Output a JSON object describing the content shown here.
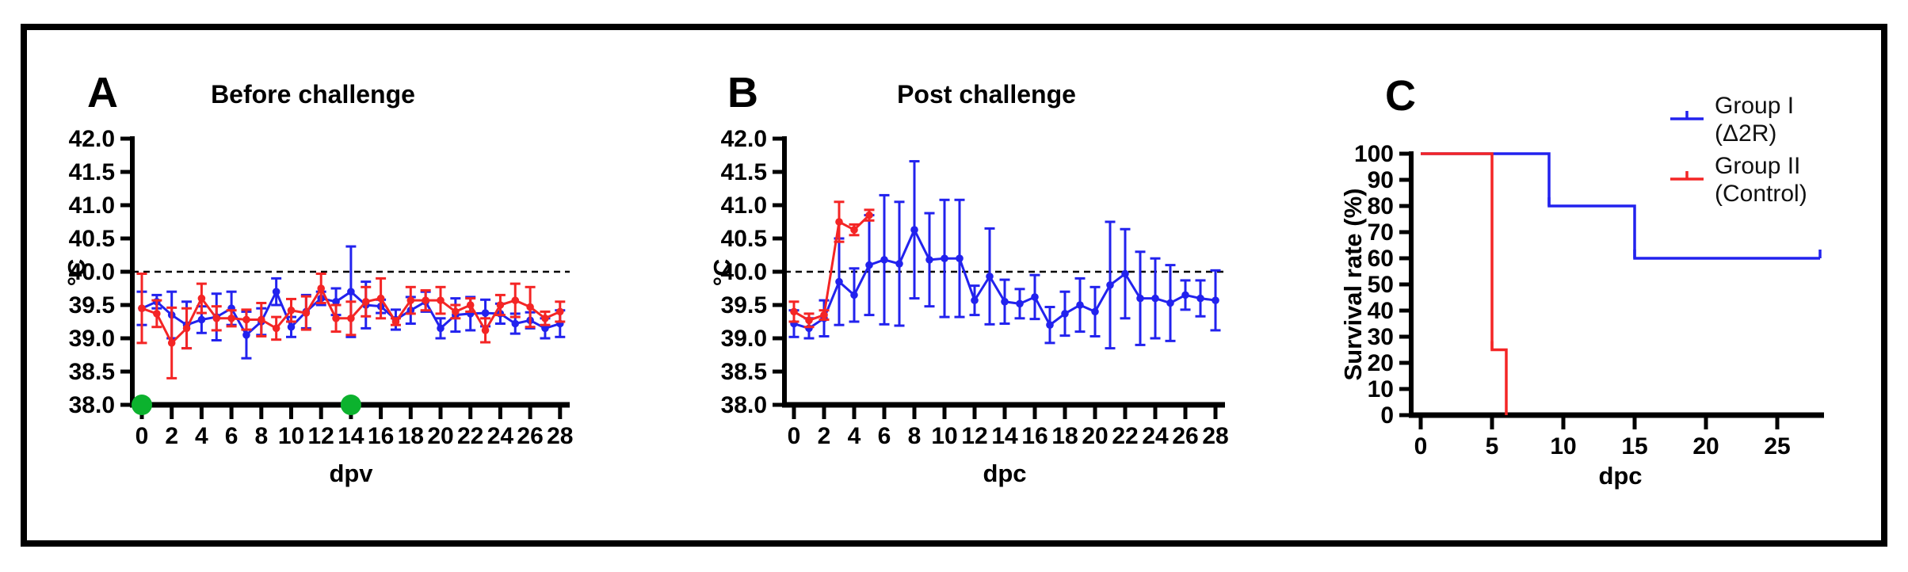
{
  "colors": {
    "group1_blue": "#2222ee",
    "group2_red": "#f42525",
    "event_green": "#0cb22e",
    "axis_black": "#000000"
  },
  "legend": {
    "entries": [
      {
        "line1": "Group I",
        "line2": "(Δ2R)",
        "color": "#2222ee"
      },
      {
        "line1": "Group II",
        "line2": "(Control)",
        "color": "#f42525"
      }
    ]
  },
  "chart_data": [
    {
      "type": "line",
      "letter": "A",
      "title": "Before challenge",
      "xlabel": "dpv",
      "ylabel": "°C",
      "xlim": [
        0,
        28
      ],
      "ylim": [
        38.0,
        42.0
      ],
      "xticks": [
        0,
        2,
        4,
        6,
        8,
        10,
        12,
        14,
        16,
        18,
        20,
        22,
        24,
        26,
        28
      ],
      "ytick_labels": [
        "38.0",
        "38.5",
        "39.0",
        "39.5",
        "40.0",
        "40.5",
        "41.0",
        "41.5",
        "42.0"
      ],
      "ref_line_y": 40.0,
      "vaccination_marker_days": [
        0,
        14
      ],
      "series": [
        {
          "name": "Group I (Δ2R)",
          "color": "#2222ee",
          "x": [
            0,
            1,
            2,
            3,
            4,
            5,
            6,
            7,
            8,
            9,
            10,
            11,
            12,
            13,
            14,
            15,
            16,
            17,
            18,
            19,
            20,
            21,
            22,
            23,
            24,
            25,
            26,
            27,
            28
          ],
          "y": [
            39.45,
            39.55,
            39.35,
            39.2,
            39.28,
            39.32,
            39.45,
            39.05,
            39.25,
            39.7,
            39.17,
            39.4,
            39.6,
            39.55,
            39.7,
            39.5,
            39.48,
            39.28,
            39.42,
            39.55,
            39.15,
            39.35,
            39.37,
            39.38,
            39.37,
            39.22,
            39.27,
            39.15,
            39.22
          ],
          "err": [
            0.25,
            0.1,
            0.35,
            0.35,
            0.2,
            0.35,
            0.25,
            0.35,
            0.2,
            0.2,
            0.15,
            0.25,
            0.1,
            0.2,
            0.68,
            0.35,
            0.1,
            0.15,
            0.2,
            0.15,
            0.15,
            0.25,
            0.25,
            0.2,
            0.15,
            0.15,
            0.12,
            0.15,
            0.2
          ]
        },
        {
          "name": "Group II (Control)",
          "color": "#f42525",
          "x": [
            0,
            1,
            2,
            3,
            4,
            5,
            6,
            7,
            8,
            9,
            10,
            11,
            12,
            13,
            14,
            15,
            16,
            17,
            18,
            19,
            20,
            21,
            22,
            23,
            24,
            25,
            26,
            27,
            28
          ],
          "y": [
            39.45,
            39.37,
            38.93,
            39.15,
            39.6,
            39.3,
            39.3,
            39.28,
            39.28,
            39.15,
            39.42,
            39.38,
            39.75,
            39.3,
            39.3,
            39.55,
            39.6,
            39.25,
            39.57,
            39.57,
            39.57,
            39.4,
            39.5,
            39.12,
            39.5,
            39.57,
            39.47,
            39.3,
            39.4
          ],
          "err": [
            0.52,
            0.2,
            0.53,
            0.3,
            0.22,
            0.18,
            0.12,
            0.15,
            0.25,
            0.17,
            0.17,
            0.25,
            0.22,
            0.2,
            0.25,
            0.22,
            0.3,
            0.05,
            0.2,
            0.15,
            0.2,
            0.1,
            0.1,
            0.18,
            0.15,
            0.25,
            0.3,
            0.1,
            0.15
          ]
        }
      ]
    },
    {
      "type": "line",
      "letter": "B",
      "title": "Post challenge",
      "xlabel": "dpc",
      "ylabel": "°C",
      "xlim": [
        0,
        28
      ],
      "ylim": [
        38.0,
        42.0
      ],
      "xticks": [
        0,
        2,
        4,
        6,
        8,
        10,
        12,
        14,
        16,
        18,
        20,
        22,
        24,
        26,
        28
      ],
      "ytick_labels": [
        "38.0",
        "38.5",
        "39.0",
        "39.5",
        "40.0",
        "40.5",
        "41.0",
        "41.5",
        "42.0"
      ],
      "ref_line_y": 40.0,
      "vaccination_marker_days": [],
      "series": [
        {
          "name": "Group I (Δ2R)",
          "color": "#2222ee",
          "x": [
            0,
            1,
            2,
            3,
            4,
            5,
            6,
            7,
            8,
            9,
            10,
            11,
            12,
            13,
            14,
            15,
            16,
            17,
            18,
            19,
            20,
            21,
            22,
            23,
            24,
            25,
            26,
            27,
            28
          ],
          "y": [
            39.22,
            39.15,
            39.3,
            39.85,
            39.65,
            40.1,
            40.18,
            40.12,
            40.63,
            40.18,
            40.2,
            40.2,
            39.57,
            39.93,
            39.55,
            39.52,
            39.62,
            39.2,
            39.37,
            39.5,
            39.4,
            39.8,
            39.97,
            39.6,
            39.6,
            39.53,
            39.65,
            39.6,
            39.57
          ],
          "err": [
            0.2,
            0.15,
            0.27,
            0.65,
            0.4,
            0.75,
            0.97,
            0.93,
            1.03,
            0.7,
            0.88,
            0.88,
            0.22,
            0.72,
            0.33,
            0.22,
            0.33,
            0.27,
            0.33,
            0.4,
            0.37,
            0.95,
            0.67,
            0.7,
            0.6,
            0.57,
            0.22,
            0.27,
            0.45
          ]
        },
        {
          "name": "Group II (Control)",
          "color": "#f42525",
          "x": [
            0,
            1,
            2,
            3,
            4,
            5
          ],
          "y": [
            39.4,
            39.27,
            39.35,
            40.75,
            40.63,
            40.85
          ],
          "err": [
            0.15,
            0.1,
            0.07,
            0.3,
            0.08,
            0.08
          ]
        }
      ]
    },
    {
      "type": "survival-step",
      "letter": "C",
      "title": "",
      "xlabel": "dpc",
      "ylabel": "Survival rate (%)",
      "xlim": [
        0,
        28
      ],
      "ylim": [
        0,
        100
      ],
      "xticks": [
        0,
        5,
        10,
        15,
        20,
        25
      ],
      "yticks": [
        0,
        10,
        20,
        30,
        40,
        50,
        60,
        70,
        80,
        90,
        100
      ],
      "series": [
        {
          "name": "Group I (Δ2R)",
          "color": "#2222ee",
          "points": [
            [
              0,
              100
            ],
            [
              9,
              100
            ],
            [
              9,
              80
            ],
            [
              15,
              80
            ],
            [
              15,
              60
            ],
            [
              28,
              60
            ]
          ],
          "event_ticks": [
            [
              9,
              80
            ],
            [
              15,
              60
            ],
            [
              28,
              60
            ]
          ]
        },
        {
          "name": "Group II (Control)",
          "color": "#f42525",
          "points": [
            [
              0,
              100
            ],
            [
              5,
              100
            ],
            [
              5,
              25
            ],
            [
              6,
              25
            ],
            [
              6,
              0
            ]
          ],
          "event_ticks": [
            [
              5,
              25
            ]
          ]
        }
      ]
    }
  ]
}
